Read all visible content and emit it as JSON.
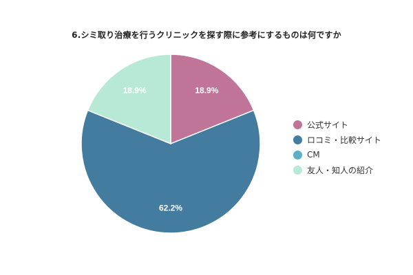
{
  "chart_data": {
    "type": "pie",
    "title": "6.シミ取り治療を行うクリニックを探す際に参考にするものは何ですか",
    "categories": [
      "公式サイト",
      "ロコミ・比較サイト",
      "CM",
      "友人・知人の紹介"
    ],
    "values": [
      18.9,
      62.2,
      0,
      18.9
    ],
    "value_labels": [
      "18.9%",
      "62.2%",
      "",
      "18.9%"
    ],
    "colors": [
      "#c07497",
      "#437c9f",
      "#5bb0c4",
      "#b8e8d6"
    ],
    "legend_position": "right"
  }
}
